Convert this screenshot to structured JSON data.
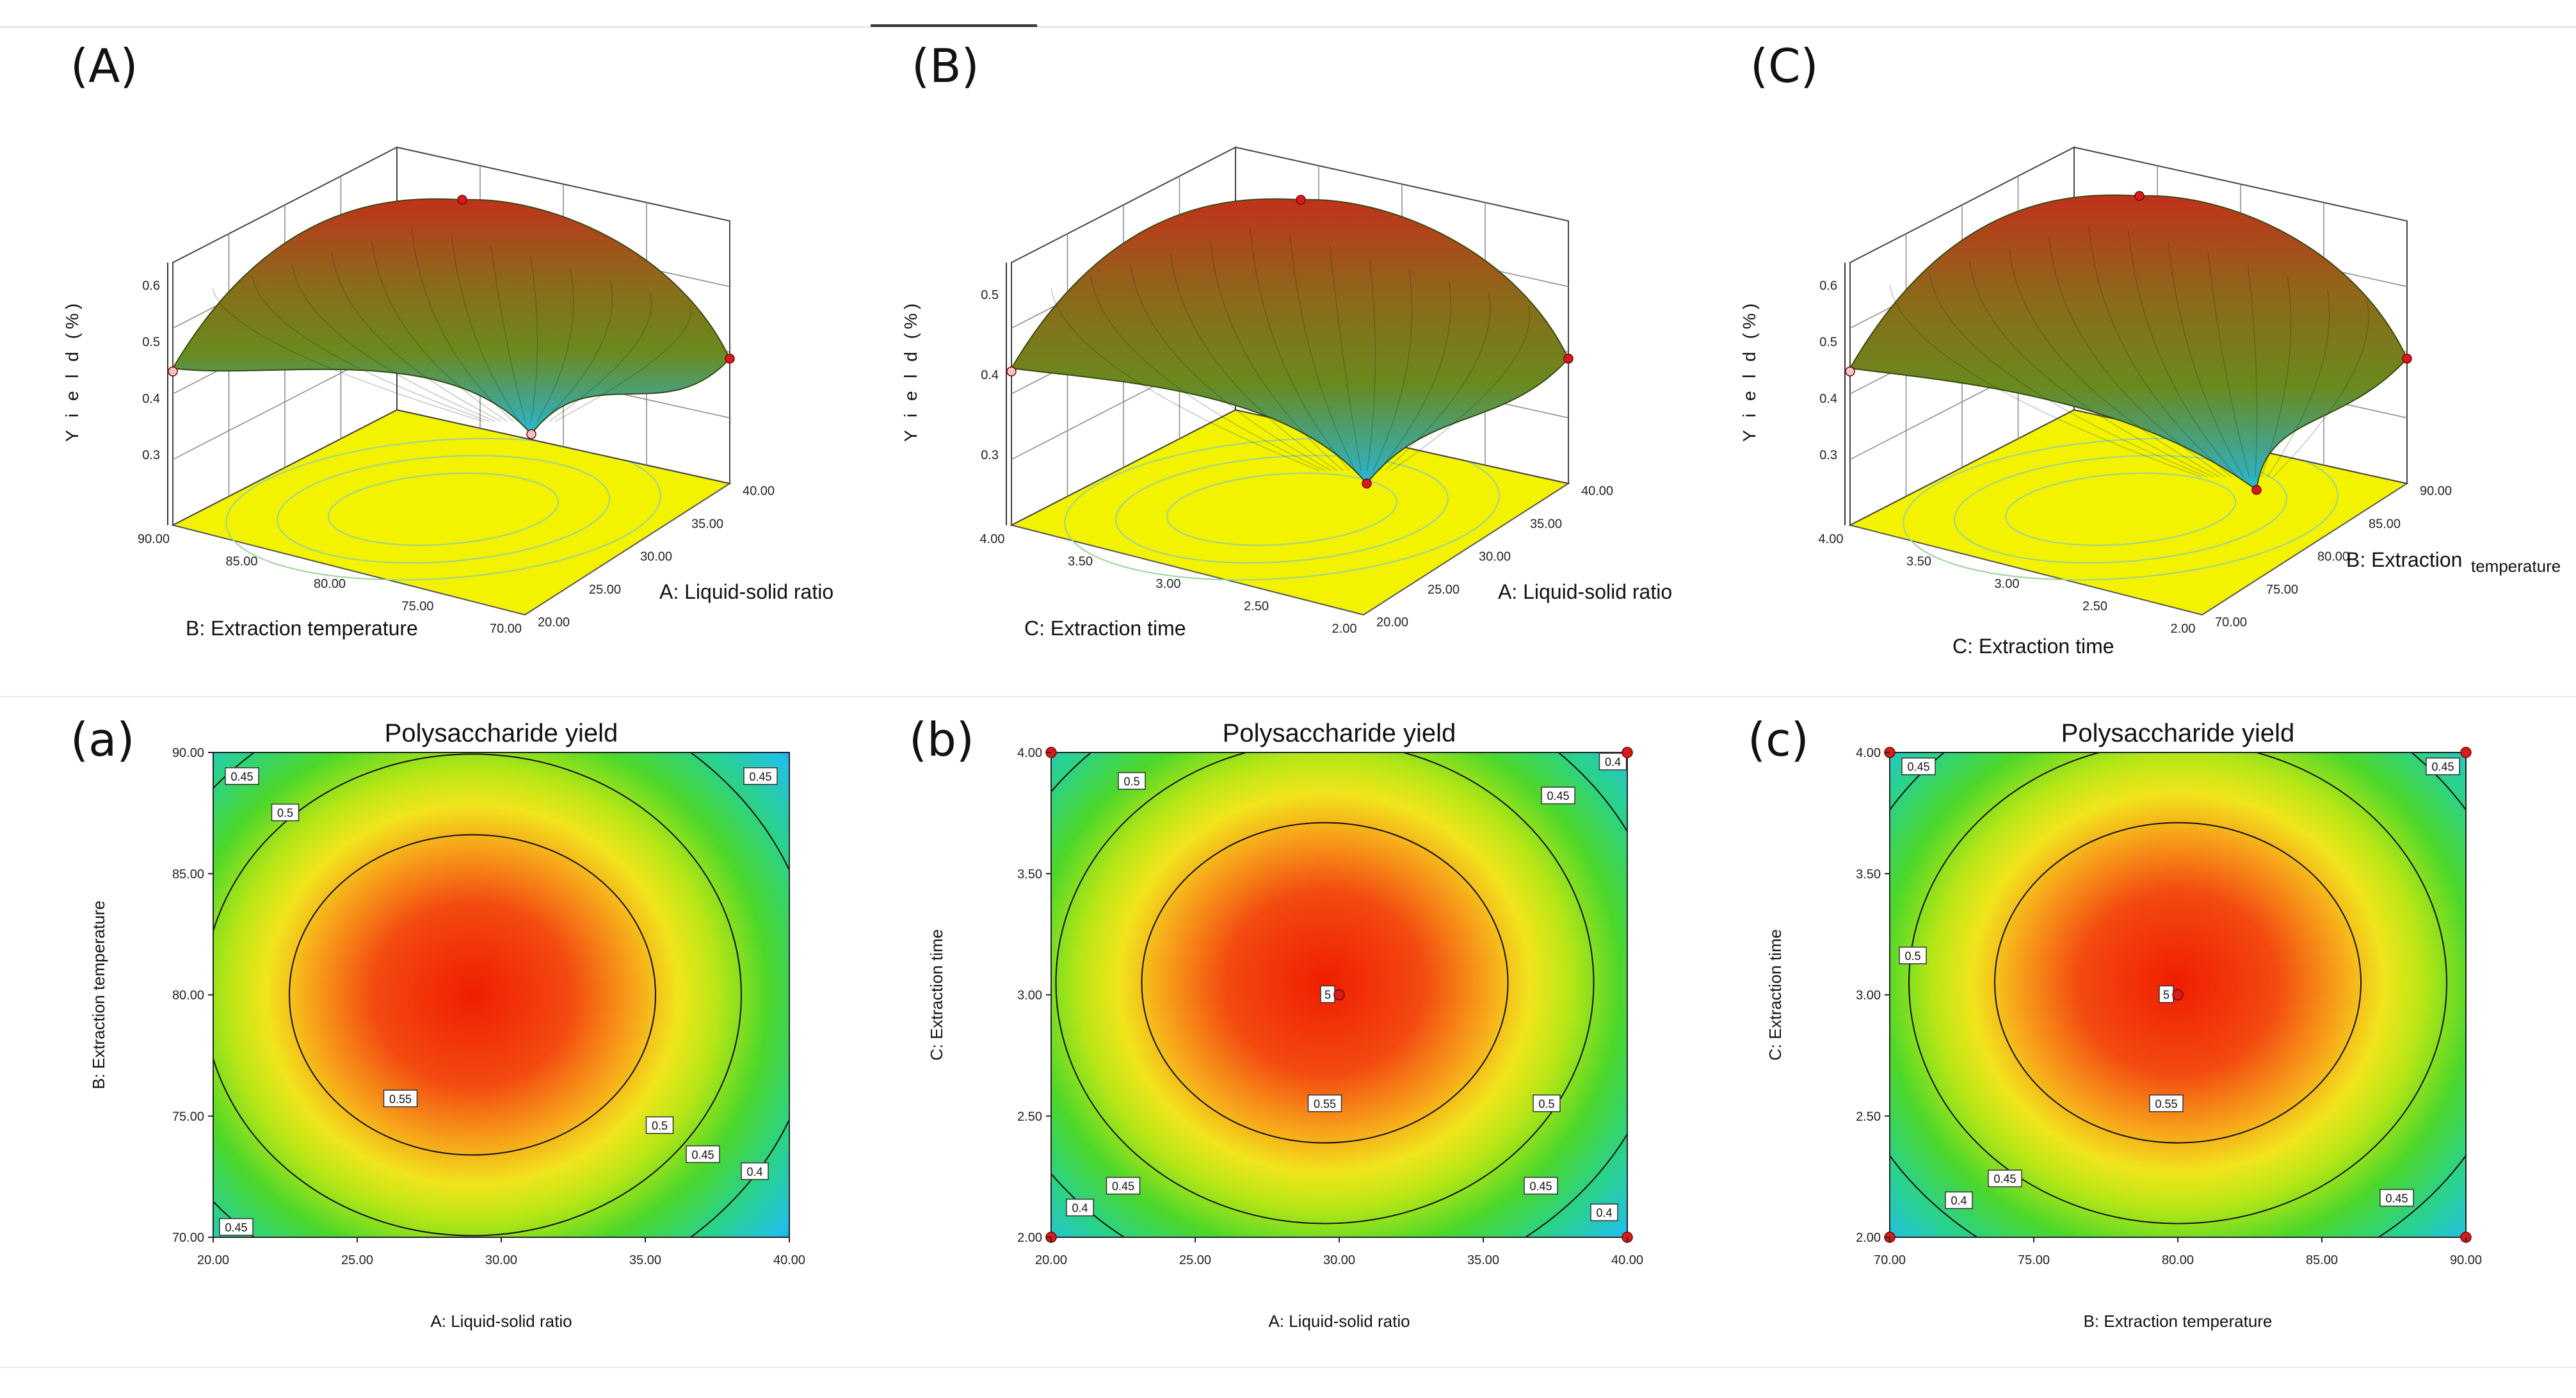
{
  "chart_data": [
    {
      "panel": "(A)",
      "type": "surface",
      "zlabel": "Y i e l d  (%)",
      "zticks": [
        "0.3",
        "0.4",
        "0.5",
        "0.6"
      ],
      "xlabel": "B: Extraction temperature",
      "xticks": [
        "90.00",
        "85.00",
        "80.00",
        "75.00",
        "70.00"
      ],
      "ylabel": "A: Liquid-solid ratio",
      "yticks": [
        "20.00",
        "25.00",
        "30.00",
        "35.00",
        "40.00"
      ],
      "colors": {
        "peak": "#c1311c",
        "mid": "#6a8a1e",
        "low": "#29b6d6",
        "floor": "#f3f300"
      }
    },
    {
      "panel": "(B)",
      "type": "surface",
      "zlabel": "Y i e l d  (%)",
      "zticks": [
        "0.3",
        "0.4",
        "0.5"
      ],
      "xlabel": "C: Extraction time",
      "xticks": [
        "4.00",
        "3.50",
        "3.00",
        "2.50",
        "2.00"
      ],
      "ylabel": "A: Liquid-solid ratio",
      "yticks": [
        "20.00",
        "25.00",
        "30.00",
        "35.00",
        "40.00"
      ],
      "colors": {
        "peak": "#c1311c",
        "mid": "#6a8a1e",
        "low": "#29b6d6",
        "floor": "#f3f300"
      }
    },
    {
      "panel": "(C)",
      "type": "surface",
      "zlabel": "Y i e l d  (%)",
      "zticks": [
        "0.3",
        "0.4",
        "0.5",
        "0.6"
      ],
      "xlabel": "C: Extraction time",
      "xticks": [
        "4.00",
        "3.50",
        "3.00",
        "2.50",
        "2.00"
      ],
      "ylabel": "B: Extraction temperature",
      "ylabel_parts": [
        "B: Extraction",
        "temperature"
      ],
      "yticks": [
        "70.00",
        "75.00",
        "80.00",
        "85.00",
        "90.00"
      ],
      "colors": {
        "peak": "#c1311c",
        "mid": "#6a8a1e",
        "low": "#29b6d6",
        "floor": "#f3f300"
      }
    },
    {
      "panel": "(a)",
      "type": "heatmap",
      "title": "Polysaccharide yield",
      "xlabel": "A: Liquid-solid ratio",
      "ylabel": "B: Extraction temperature",
      "xticks": [
        "20.00",
        "25.00",
        "30.00",
        "35.00",
        "40.00"
      ],
      "yticks": [
        "70.00",
        "75.00",
        "80.00",
        "85.00",
        "90.00"
      ],
      "x_range": [
        20,
        40
      ],
      "y_range": [
        70,
        90
      ],
      "center": [
        29,
        80
      ],
      "contour_levels": [
        0.4,
        0.45,
        0.5,
        0.55
      ],
      "contour_labels": [
        {
          "text": "0.45",
          "x": 21.0,
          "y": 89.0
        },
        {
          "text": "0.45",
          "x": 39.0,
          "y": 89.0
        },
        {
          "text": "0.5",
          "x": 22.5,
          "y": 87.5
        },
        {
          "text": "0.55",
          "x": 26.5,
          "y": 75.7
        },
        {
          "text": "0.5",
          "x": 35.5,
          "y": 74.6
        },
        {
          "text": "0.45",
          "x": 37.0,
          "y": 73.4
        },
        {
          "text": "0.4",
          "x": 38.8,
          "y": 72.7
        },
        {
          "text": "0.45",
          "x": 20.8,
          "y": 70.4
        }
      ],
      "design_points": []
    },
    {
      "panel": "(b)",
      "type": "heatmap",
      "title": "Polysaccharide yield",
      "xlabel": "A: Liquid-solid ratio",
      "ylabel": "C: Extraction time",
      "xticks": [
        "20.00",
        "25.00",
        "30.00",
        "35.00",
        "40.00"
      ],
      "yticks": [
        "2.00",
        "2.50",
        "3.00",
        "3.50",
        "4.00"
      ],
      "x_range": [
        20,
        40
      ],
      "y_range": [
        2,
        4
      ],
      "center": [
        29.5,
        3.05
      ],
      "contour_levels": [
        0.4,
        0.45,
        0.5,
        0.55
      ],
      "contour_labels": [
        {
          "text": "0.5",
          "x": 22.8,
          "y": 3.88
        },
        {
          "text": "0.4",
          "x": 39.5,
          "y": 3.96
        },
        {
          "text": "0.45",
          "x": 37.6,
          "y": 3.82
        },
        {
          "text": "5",
          "x": 29.6,
          "y": 3.0
        },
        {
          "text": "0.55",
          "x": 29.5,
          "y": 2.55
        },
        {
          "text": "0.5",
          "x": 37.2,
          "y": 2.55
        },
        {
          "text": "0.45",
          "x": 22.5,
          "y": 2.21
        },
        {
          "text": "0.45",
          "x": 37.0,
          "y": 2.21
        },
        {
          "text": "0.4",
          "x": 21.0,
          "y": 2.12
        },
        {
          "text": "0.4",
          "x": 39.2,
          "y": 2.1
        }
      ],
      "design_points": [
        [
          20,
          2
        ],
        [
          40,
          2
        ],
        [
          20,
          4
        ],
        [
          40,
          4
        ],
        [
          30,
          3
        ]
      ]
    },
    {
      "panel": "(c)",
      "type": "heatmap",
      "title": "Polysaccharide yield",
      "xlabel": "B: Extraction temperature",
      "ylabel": "C: Extraction time",
      "xticks": [
        "70.00",
        "75.00",
        "80.00",
        "85.00",
        "90.00"
      ],
      "yticks": [
        "2.00",
        "2.50",
        "3.00",
        "3.50",
        "4.00"
      ],
      "x_range": [
        70,
        90
      ],
      "y_range": [
        2,
        4
      ],
      "center": [
        80,
        3.05
      ],
      "contour_levels": [
        0.4,
        0.45,
        0.5,
        0.55
      ],
      "contour_labels": [
        {
          "text": "0.45",
          "x": 71.0,
          "y": 3.94
        },
        {
          "text": "0.45",
          "x": 89.2,
          "y": 3.94
        },
        {
          "text": "0.5",
          "x": 70.8,
          "y": 3.16
        },
        {
          "text": "5",
          "x": 79.6,
          "y": 3.0
        },
        {
          "text": "0.55",
          "x": 79.6,
          "y": 2.55
        },
        {
          "text": "0.4",
          "x": 72.4,
          "y": 2.15
        },
        {
          "text": "0.45",
          "x": 74.0,
          "y": 2.24
        },
        {
          "text": "0.45",
          "x": 87.6,
          "y": 2.16
        }
      ],
      "design_points": [
        [
          70,
          2
        ],
        [
          90,
          2
        ],
        [
          70,
          4
        ],
        [
          90,
          4
        ],
        [
          80,
          3
        ]
      ]
    }
  ]
}
